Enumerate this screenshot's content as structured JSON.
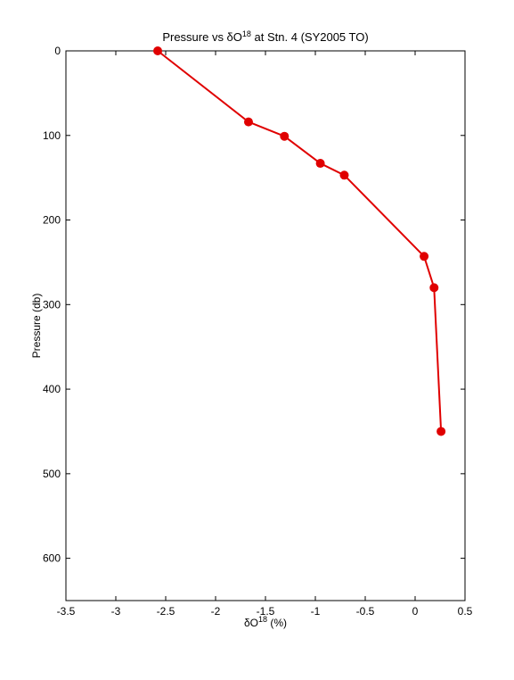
{
  "chart_data": {
    "type": "line",
    "title_parts": [
      {
        "text": "Pressure vs δO"
      },
      {
        "text": "18",
        "superscript": true
      },
      {
        "text": " at Stn. 4 (SY2005 TO)"
      }
    ],
    "xlabel_parts": [
      {
        "text": "δO"
      },
      {
        "text": "18",
        "superscript": true
      },
      {
        "text": " (%)"
      }
    ],
    "ylabel": "Pressure (db)",
    "x": [
      -2.58,
      -1.67,
      -1.31,
      -0.95,
      -0.71,
      0.09,
      0.19,
      0.26
    ],
    "series": [
      {
        "color": "#e00000",
        "values": [
          0,
          84,
          101,
          133,
          147,
          243,
          280,
          450
        ]
      }
    ],
    "xlim": [
      -3.5,
      0.5
    ],
    "xticks": [
      -3.5,
      -3,
      -2.5,
      -2,
      -1.5,
      -1,
      -0.5,
      0,
      0.5
    ],
    "ylim": [
      0,
      650
    ],
    "yticks": [
      0,
      100,
      200,
      300,
      400,
      500,
      600
    ],
    "y_reversed": true,
    "grid": false,
    "markers": true
  }
}
